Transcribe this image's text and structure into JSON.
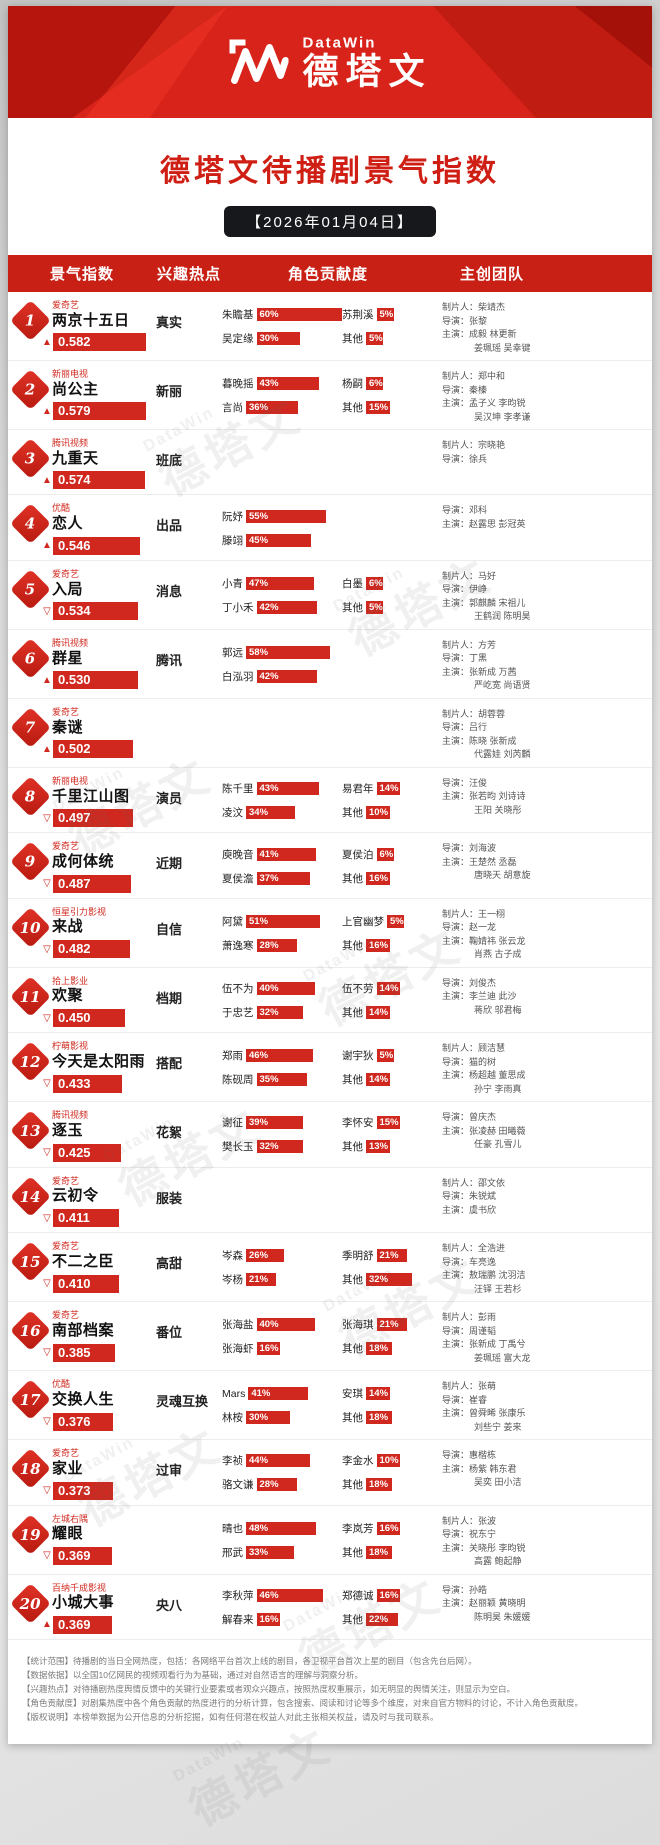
{
  "banner": {
    "brand_en": "DataWin",
    "brand_cn": "德塔文"
  },
  "title": "德塔文待播剧景气指数",
  "date": "【2026年01月04日】",
  "columns": {
    "index": "景气指数",
    "hotspot": "兴趣热点",
    "contribution": "角色贡献度",
    "team": "主创团队"
  },
  "colors": {
    "red": "#d0281e",
    "banner_red": "#d8231a",
    "dark_red": "#b5150d",
    "black_pill": "#17181c"
  },
  "watermark": "德塔文",
  "rows": [
    {
      "rank": "1",
      "platform": "爱奇艺",
      "title": "两京十五日",
      "index": "0.582",
      "trend": "up",
      "hotspot": "真实",
      "roles": [
        {
          "name": "朱瞻基",
          "pct": 60
        },
        {
          "name": "苏荆溪",
          "pct": 5
        },
        {
          "name": "吴定缘",
          "pct": 30
        },
        {
          "name": "其他",
          "pct": 5
        }
      ],
      "team": [
        "制片人：柴靖杰",
        "导演：张黎",
        "主演：成毅 林更新",
        "姜珮瑶 吴幸键"
      ]
    },
    {
      "rank": "2",
      "platform": "新丽电视",
      "title": "尚公主",
      "index": "0.579",
      "trend": "up",
      "hotspot": "新丽",
      "roles": [
        {
          "name": "暮晚摇",
          "pct": 43
        },
        {
          "name": "杨嗣",
          "pct": 6
        },
        {
          "name": "言尚",
          "pct": 36
        },
        {
          "name": "其他",
          "pct": 15
        }
      ],
      "team": [
        "制片人：郑中和",
        "导演：秦榛",
        "主演：孟子义 李昀锐",
        "吴汉坤 李孝谦"
      ]
    },
    {
      "rank": "3",
      "platform": "腾讯视频",
      "title": "九重天",
      "index": "0.574",
      "trend": "up",
      "hotspot": "班底",
      "roles": [],
      "team": [
        "制片人：宗晓艳",
        "导演：徐兵"
      ]
    },
    {
      "rank": "4",
      "platform": "优酷",
      "title": "恋人",
      "index": "0.546",
      "trend": "up",
      "hotspot": "出品",
      "roles": [
        {
          "name": "阮妤",
          "pct": 55
        },
        null,
        {
          "name": "滕翊",
          "pct": 45
        },
        null
      ],
      "team": [
        "导演：邓科",
        "主演：赵露思 彭冠英"
      ]
    },
    {
      "rank": "5",
      "platform": "爱奇艺",
      "title": "入局",
      "index": "0.534",
      "trend": "down",
      "hotspot": "消息",
      "roles": [
        {
          "name": "小青",
          "pct": 47
        },
        {
          "name": "白墨",
          "pct": 6
        },
        {
          "name": "丁小禾",
          "pct": 42
        },
        {
          "name": "其他",
          "pct": 5
        }
      ],
      "team": [
        "制片人：马好",
        "导演：伊峥",
        "主演：郭麒麟 宋祖儿",
        "王鹤润 陈明昊"
      ]
    },
    {
      "rank": "6",
      "platform": "腾讯视频",
      "title": "群星",
      "index": "0.530",
      "trend": "up",
      "hotspot": "腾讯",
      "roles": [
        {
          "name": "郭远",
          "pct": 58
        },
        null,
        {
          "name": "白泓羽",
          "pct": 42
        },
        null
      ],
      "team": [
        "制片人：方芳",
        "导演：丁黑",
        "主演：张新成 万茜",
        "严屹宽 尚语贤"
      ]
    },
    {
      "rank": "7",
      "platform": "爱奇艺",
      "title": "秦谜",
      "index": "0.502",
      "trend": "up",
      "hotspot": "",
      "roles": [],
      "team": [
        "制片人：胡蓉蓉",
        "导演：吕行",
        "主演：陈晓 张新成",
        "代露娃 刘芮麟"
      ]
    },
    {
      "rank": "8",
      "platform": "新丽电视",
      "title": "千里江山图",
      "index": "0.497",
      "trend": "down",
      "hotspot": "演员",
      "roles": [
        {
          "name": "陈千里",
          "pct": 43
        },
        {
          "name": "易君年",
          "pct": 14
        },
        {
          "name": "凌汶",
          "pct": 34
        },
        {
          "name": "其他",
          "pct": 10
        }
      ],
      "team": [
        "导演：汪俊",
        "主演：张若昀 刘诗诗",
        "王阳 关晓彤"
      ]
    },
    {
      "rank": "9",
      "platform": "爱奇艺",
      "title": "成何体统",
      "index": "0.487",
      "trend": "down",
      "hotspot": "近期",
      "roles": [
        {
          "name": "庾晚音",
          "pct": 41
        },
        {
          "name": "夏侯泊",
          "pct": 6
        },
        {
          "name": "夏侯澹",
          "pct": 37
        },
        {
          "name": "其他",
          "pct": 16
        }
      ],
      "team": [
        "导演：刘海波",
        "主演：王楚然 丞磊",
        "唐晓天 胡意旋"
      ]
    },
    {
      "rank": "10",
      "platform": "恒星引力影视",
      "title": "来战",
      "index": "0.482",
      "trend": "down",
      "hotspot": "自信",
      "roles": [
        {
          "name": "阿黛",
          "pct": 51
        },
        {
          "name": "上官幽梦",
          "pct": 5
        },
        {
          "name": "萧逸寒",
          "pct": 28
        },
        {
          "name": "其他",
          "pct": 16
        }
      ],
      "team": [
        "制片人：王一栩",
        "导演：赵一龙",
        "主演：鞠婧祎 张云龙",
        "肖燕 古子成"
      ]
    },
    {
      "rank": "11",
      "platform": "拾上影业",
      "title": "欢聚",
      "index": "0.450",
      "trend": "down",
      "hotspot": "档期",
      "roles": [
        {
          "name": "伍不为",
          "pct": 40
        },
        {
          "name": "伍不劳",
          "pct": 14
        },
        {
          "name": "于忠艺",
          "pct": 32
        },
        {
          "name": "其他",
          "pct": 14
        }
      ],
      "team": [
        "导演：刘俊杰",
        "主演：李兰迪 此沙",
        "蒋欣 邬君梅"
      ]
    },
    {
      "rank": "12",
      "platform": "柠萌影视",
      "title": "今天是太阳雨",
      "index": "0.433",
      "trend": "down",
      "hotspot": "搭配",
      "roles": [
        {
          "name": "郑雨",
          "pct": 46
        },
        {
          "name": "谢宇狄",
          "pct": 5
        },
        {
          "name": "陈砚周",
          "pct": 35
        },
        {
          "name": "其他",
          "pct": 14
        }
      ],
      "team": [
        "制片人：顾洁慧",
        "导演：猫的树",
        "主演：杨超越 董思成",
        "孙宁 李雨真"
      ]
    },
    {
      "rank": "13",
      "platform": "腾讯视频",
      "title": "逐玉",
      "index": "0.425",
      "trend": "down",
      "hotspot": "花絮",
      "roles": [
        {
          "name": "谢征",
          "pct": 39
        },
        {
          "name": "李怀安",
          "pct": 15
        },
        {
          "name": "樊长玉",
          "pct": 32
        },
        {
          "name": "其他",
          "pct": 13
        }
      ],
      "team": [
        "导演：曾庆杰",
        "主演：张凌赫 田曦薇",
        "任豪 孔雪儿"
      ]
    },
    {
      "rank": "14",
      "platform": "爱奇艺",
      "title": "云初令",
      "index": "0.411",
      "trend": "down",
      "hotspot": "服装",
      "roles": [],
      "team": [
        "制片人：邵文依",
        "导演：朱锐斌",
        "主演：虞书欣"
      ]
    },
    {
      "rank": "15",
      "platform": "爱奇艺",
      "title": "不二之臣",
      "index": "0.410",
      "trend": "down",
      "hotspot": "高甜",
      "roles": [
        {
          "name": "岑森",
          "pct": 26
        },
        {
          "name": "季明舒",
          "pct": 21
        },
        {
          "name": "岑杨",
          "pct": 21
        },
        {
          "name": "其他",
          "pct": 32
        }
      ],
      "team": [
        "制片人：全浩进",
        "导演：车亮逸",
        "主演：敖瑞鹏 沈羽洁",
        "汪铎 王若杉"
      ]
    },
    {
      "rank": "16",
      "platform": "爱奇艺",
      "title": "南部档案",
      "index": "0.385",
      "trend": "down",
      "hotspot": "番位",
      "roles": [
        {
          "name": "张海盐",
          "pct": 40
        },
        {
          "name": "张海琪",
          "pct": 21
        },
        {
          "name": "张海虾",
          "pct": 16
        },
        {
          "name": "其他",
          "pct": 18
        }
      ],
      "team": [
        "制片人：彭雨",
        "导演：周谨韬",
        "主演：张新成 丁禹兮",
        "姜珮瑶 富大龙"
      ]
    },
    {
      "rank": "17",
      "platform": "优酷",
      "title": "交换人生",
      "index": "0.376",
      "trend": "down",
      "hotspot": "灵魂互换",
      "roles": [
        {
          "name": "Mars",
          "pct": 41
        },
        {
          "name": "安琪",
          "pct": 14
        },
        {
          "name": "林桉",
          "pct": 30
        },
        {
          "name": "其他",
          "pct": 18
        }
      ],
      "team": [
        "制片人：张萌",
        "导演：崔睿",
        "主演：曾舜晞 张康乐",
        "刘些宁 姜来"
      ]
    },
    {
      "rank": "18",
      "platform": "爱奇艺",
      "title": "家业",
      "index": "0.373",
      "trend": "down",
      "hotspot": "过审",
      "roles": [
        {
          "name": "李祯",
          "pct": 44
        },
        {
          "name": "李金水",
          "pct": 10
        },
        {
          "name": "骆文谦",
          "pct": 28
        },
        {
          "name": "其他",
          "pct": 18
        }
      ],
      "team": [
        "导演：惠楷栋",
        "主演：杨紫 韩东君",
        "吴奕 田小洁"
      ]
    },
    {
      "rank": "19",
      "platform": "左城右隅",
      "title": "耀眼",
      "index": "0.369",
      "trend": "down",
      "hotspot": "",
      "roles": [
        {
          "name": "晴也",
          "pct": 48
        },
        {
          "name": "李岚芳",
          "pct": 16
        },
        {
          "name": "邢武",
          "pct": 33
        },
        {
          "name": "其他",
          "pct": 18
        }
      ],
      "team": [
        "制片人：张波",
        "导演：祝东宁",
        "主演：关晓彤 李昀锐",
        "高露 鲍起静"
      ]
    },
    {
      "rank": "20",
      "platform": "百纳千成影视",
      "title": "小城大事",
      "index": "0.369",
      "trend": "up",
      "hotspot": "央八",
      "roles": [
        {
          "name": "李秋萍",
          "pct": 46
        },
        {
          "name": "郑德诚",
          "pct": 16
        },
        {
          "name": "解春来",
          "pct": 16
        },
        {
          "name": "其他",
          "pct": 22
        }
      ],
      "team": [
        "导演：孙皓",
        "主演：赵丽颖 黄晓明",
        "陈明昊 朱媛媛"
      ]
    }
  ],
  "footnotes": [
    "【统计范围】待播剧的当日全网热度，包括：各网络平台首次上线的剧目，各卫视平台首次上星的剧目（包含先台后网）。",
    "【数据依据】以全国10亿网民的视频观看行为为基础，通过对自然语言的理解与洞察分析。",
    "【兴趣热点】对待播剧热度舆情反馈中的关键行业要素或者观众兴趣点，按照热度权重展示，如无明显的舆情关注，则显示为空白。",
    "【角色贡献度】对剧集热度中各个角色贡献的热度进行的分析计算，包含搜索、阅读和讨论等多个维度，对来自官方物料的讨论，不计入角色贡献度。",
    "【版权说明】本榜单数据为公开信息的分析挖掘，如有任何潜在权益人对此主张相关权益，请及时与我司联系。"
  ],
  "chart_data": {
    "type": "table",
    "title": "德塔文待播剧景气指数",
    "date": "2026年01月04日",
    "columns": [
      "排名",
      "剧名",
      "景气指数",
      "趋势",
      "兴趣热点",
      "角色贡献度",
      "主创团队"
    ],
    "dramas": [
      "两京十五日",
      "尚公主",
      "九重天",
      "恋人",
      "入局",
      "群星",
      "秦谜",
      "千里江山图",
      "成何体统",
      "来战",
      "欢聚",
      "今天是太阳雨",
      "逐玉",
      "云初令",
      "不二之臣",
      "南部档案",
      "交换人生",
      "家业",
      "耀眼",
      "小城大事"
    ],
    "index_values": [
      0.582,
      0.579,
      0.574,
      0.546,
      0.534,
      0.53,
      0.502,
      0.497,
      0.487,
      0.482,
      0.45,
      0.433,
      0.425,
      0.411,
      0.41,
      0.385,
      0.376,
      0.373,
      0.369,
      0.369
    ],
    "trends": [
      "up",
      "up",
      "up",
      "up",
      "down",
      "up",
      "up",
      "down",
      "down",
      "down",
      "down",
      "down",
      "down",
      "down",
      "down",
      "down",
      "down",
      "down",
      "down",
      "up"
    ]
  }
}
